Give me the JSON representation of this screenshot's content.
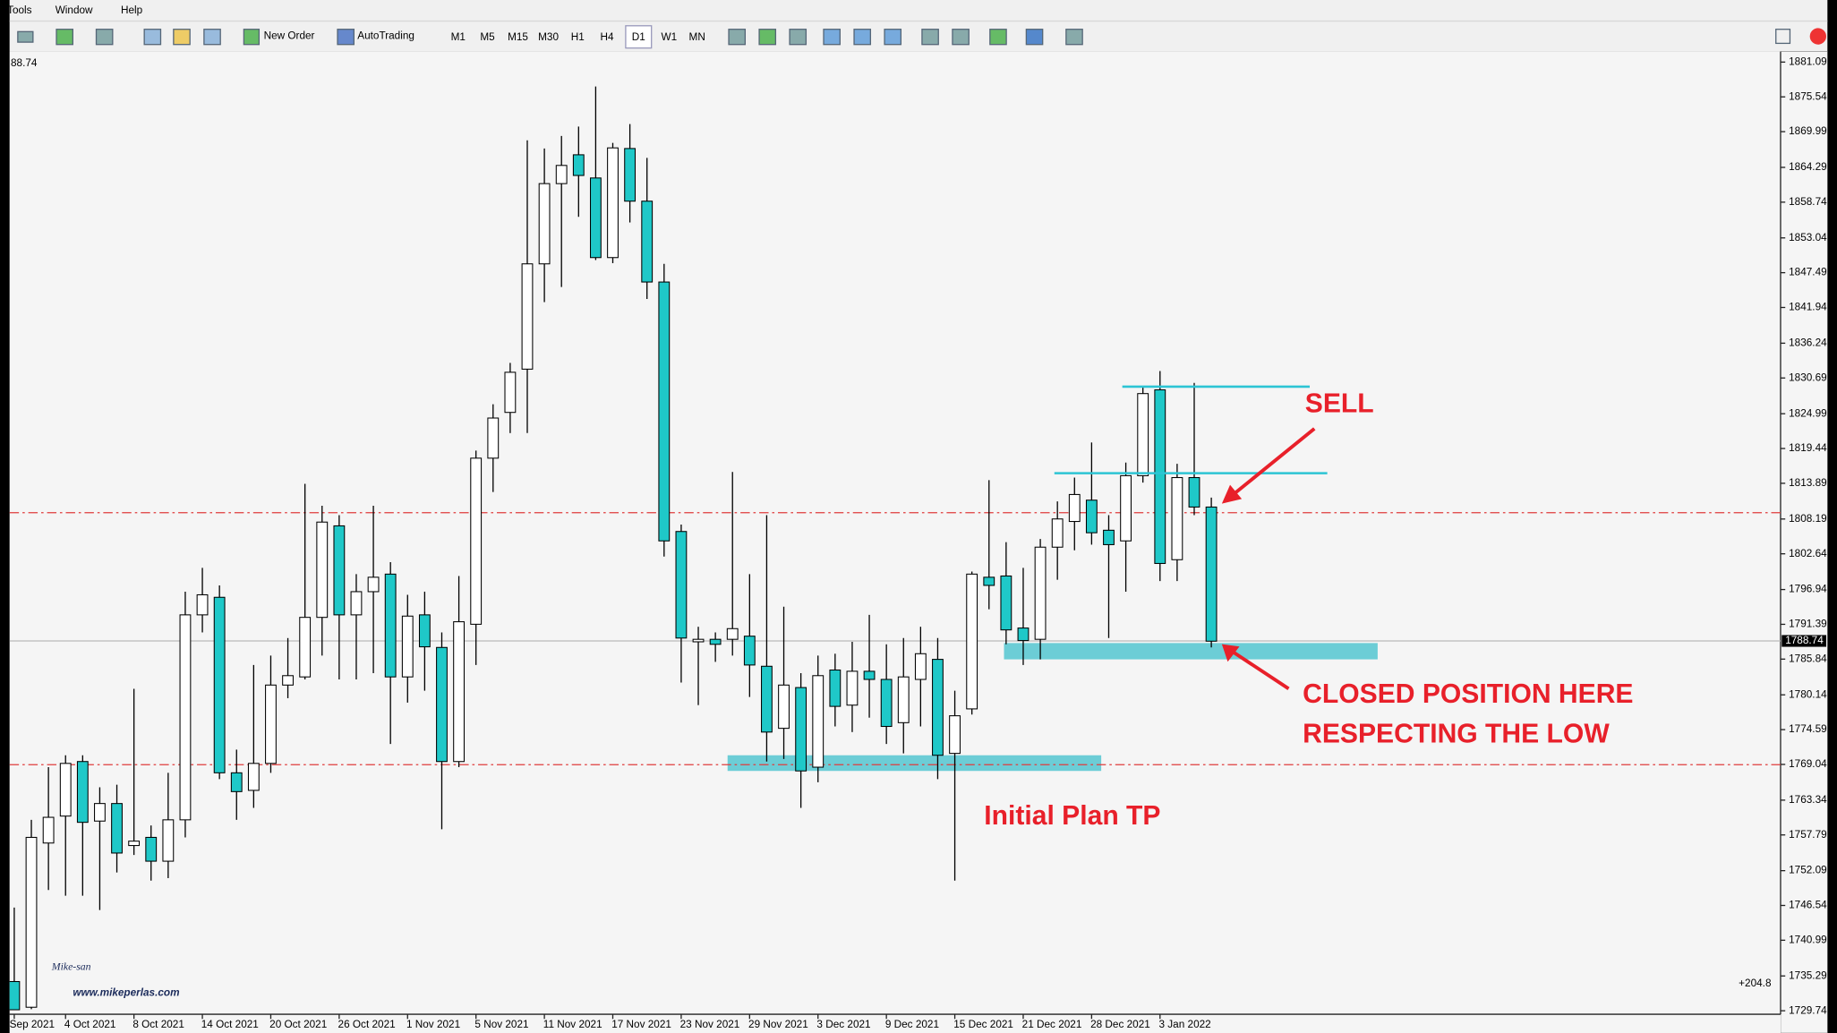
{
  "ui": {
    "menu": [
      "Tools",
      "Window",
      "Help"
    ],
    "toolbar": [
      "New Order",
      "AutoTrading"
    ],
    "timeframes": [
      "M1",
      "M5",
      "M15",
      "M30",
      "H1",
      "H4",
      "D1",
      "W1",
      "MN"
    ],
    "corner_price": "88.74",
    "profit": "+204.8",
    "watermark": "Mike-san",
    "website": "www.mikeperlas.com"
  },
  "chart_data": {
    "type": "candlestick",
    "annotations": {
      "sell": "SELL",
      "closed_1": "CLOSED POSITION HERE",
      "closed_2": "RESPECTING THE LOW",
      "tp": "Initial Plan TP"
    },
    "categories": [
      "Sep 2021",
      null,
      null,
      "4 Oct 2021",
      null,
      null,
      null,
      "8 Oct 2021",
      null,
      null,
      null,
      "14 Oct 2021",
      null,
      null,
      null,
      "20 Oct 2021",
      null,
      null,
      null,
      "26 Oct 2021",
      null,
      null,
      null,
      "1 Nov 2021",
      null,
      null,
      null,
      "5 Nov 2021",
      null,
      null,
      null,
      "11 Nov 2021",
      null,
      null,
      null,
      "17 Nov 2021",
      null,
      null,
      null,
      "23 Nov 2021",
      null,
      null,
      null,
      "29 Nov 2021",
      null,
      null,
      null,
      "3 Dec 2021",
      null,
      null,
      null,
      "9 Dec 2021",
      null,
      null,
      null,
      "15 Dec 2021",
      null,
      null,
      null,
      "21 Dec 2021",
      null,
      null,
      null,
      "28 Dec 2021",
      null,
      null,
      null,
      "3 Jan 2022",
      null,
      null,
      null
    ],
    "open": [
      1734.4,
      1730.3,
      1756.5,
      1760.8,
      1769.5,
      1760.0,
      1762.8,
      1756.1,
      1757.4,
      1753.6,
      1760.2,
      1792.9,
      1795.7,
      1767.7,
      1764.9,
      1769.2,
      1781.7,
      1783.0,
      1792.5,
      1807.1,
      1792.9,
      1796.6,
      1799.4,
      1783.0,
      1792.9,
      1787.7,
      1769.5,
      1791.4,
      1817.9,
      1825.2,
      1832.1,
      1848.9,
      1861.7,
      1866.3,
      1862.6,
      1849.9,
      1867.3,
      1858.9,
      1846.0,
      1806.2,
      1788.6,
      1789.0,
      1789.0,
      1789.5,
      1784.7,
      1774.8,
      1781.3,
      1768.6,
      1784.1,
      1778.5,
      1783.9,
      1782.6,
      1775.7,
      1782.6,
      1785.8,
      1770.8,
      1777.9,
      1798.9,
      1799.1,
      1790.8,
      1789.0,
      1803.7,
      1807.8,
      1811.2,
      1806.4,
      1804.7,
      1815.1,
      1828.8,
      1801.7,
      1814.8,
      1810.1
    ],
    "high": [
      1746.2,
      1760.2,
      1768.6,
      1770.5,
      1770.5,
      1765.4,
      1765.8,
      1781.1,
      1759.3,
      1767.7,
      1796.6,
      1800.4,
      1797.6,
      1771.4,
      1784.9,
      1786.4,
      1789.2,
      1813.8,
      1810.3,
      1808.8,
      1799.4,
      1810.3,
      1801.3,
      1796.1,
      1796.6,
      1790.1,
      1799.1,
      1819.1,
      1826.5,
      1833.1,
      1868.6,
      1867.3,
      1869.3,
      1870.8,
      1877.2,
      1868.2,
      1871.2,
      1865.8,
      1848.9,
      1807.3,
      1791.0,
      1790.1,
      1815.7,
      1799.4,
      1808.8,
      1794.2,
      1783.6,
      1786.4,
      1786.7,
      1788.6,
      1792.9,
      1788.2,
      1789.2,
      1791.0,
      1789.2,
      1780.8,
      1799.8,
      1814.4,
      1804.5,
      1800.4,
      1805.0,
      1811.0,
      1814.8,
      1820.4,
      1808.8,
      1817.2,
      1829.3,
      1831.8,
      1817.0,
      1829.9,
      1811.6
    ],
    "low": [
      1729.9,
      1730.0,
      1749.0,
      1748.1,
      1748.1,
      1745.8,
      1751.8,
      1754.6,
      1750.5,
      1750.9,
      1757.4,
      1790.1,
      1766.7,
      1760.2,
      1762.1,
      1767.7,
      1779.6,
      1782.6,
      1786.4,
      1782.6,
      1782.6,
      1783.6,
      1772.3,
      1778.9,
      1780.8,
      1758.7,
      1768.6,
      1784.9,
      1812.5,
      1821.9,
      1821.9,
      1842.8,
      1845.2,
      1856.4,
      1849.5,
      1849.0,
      1855.5,
      1843.3,
      1802.2,
      1782.1,
      1778.5,
      1785.4,
      1786.4,
      1779.8,
      1769.5,
      1769.9,
      1762.1,
      1766.2,
      1775.1,
      1774.2,
      1776.5,
      1772.3,
      1770.8,
      1775.1,
      1766.7,
      1750.5,
      1777.0,
      1793.8,
      1788.2,
      1784.9,
      1785.8,
      1798.5,
      1803.2,
      1804.1,
      1789.2,
      1796.6,
      1814.0,
      1798.3,
      1798.3,
      1808.8,
      1787.7
    ],
    "close": [
      1729.9,
      1757.4,
      1760.6,
      1769.2,
      1759.8,
      1762.8,
      1754.9,
      1756.8,
      1753.6,
      1760.2,
      1792.9,
      1796.1,
      1767.7,
      1764.7,
      1769.2,
      1781.7,
      1783.2,
      1792.5,
      1807.7,
      1792.9,
      1796.6,
      1798.9,
      1783.0,
      1792.7,
      1787.8,
      1769.5,
      1791.8,
      1817.9,
      1824.3,
      1831.6,
      1848.9,
      1861.7,
      1864.6,
      1863.0,
      1849.9,
      1867.4,
      1858.9,
      1846.0,
      1804.7,
      1789.2,
      1789.0,
      1788.2,
      1790.7,
      1784.9,
      1774.2,
      1781.7,
      1768.0,
      1783.2,
      1778.3,
      1783.9,
      1782.6,
      1775.1,
      1783.0,
      1786.7,
      1770.5,
      1776.8,
      1799.4,
      1797.6,
      1790.5,
      1788.8,
      1803.7,
      1808.2,
      1812.1,
      1806.0,
      1804.1,
      1815.1,
      1828.2,
      1801.1,
      1814.8,
      1810.1,
      1788.7
    ],
    "up_color": "#ffffff",
    "down_color": "#1fc8c8",
    "current_price": 1788.74,
    "hlines": [
      {
        "value": 1809.2,
        "color": "#e03c3c"
      },
      {
        "value": 1769.0,
        "color": "#e03c3c"
      }
    ],
    "levels": [
      {
        "value": 1829.3,
        "color": "#2cc4d4"
      },
      {
        "value": 1815.5,
        "color": "#2cc4d4"
      }
    ],
    "zones": [
      {
        "low": 1768.0,
        "high": 1770.5,
        "color": "#6ccdd6"
      },
      {
        "low": 1785.8,
        "high": 1788.4,
        "color": "#6ccdd6"
      }
    ],
    "ylim": [
      1729.74,
      1881.09
    ],
    "yticks": [
      1881.09,
      1875.54,
      1869.99,
      1864.29,
      1858.74,
      1853.04,
      1847.49,
      1841.94,
      1836.24,
      1830.69,
      1824.99,
      1819.44,
      1813.89,
      1808.19,
      1802.64,
      1796.94,
      1791.39,
      1785.84,
      1780.14,
      1774.59,
      1769.04,
      1763.34,
      1757.79,
      1752.09,
      1746.54,
      1740.99,
      1735.29,
      1729.74
    ]
  }
}
